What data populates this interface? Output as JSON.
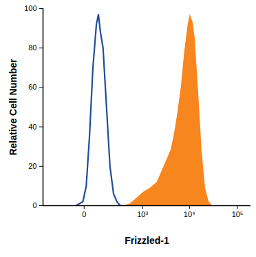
{
  "chart_data": {
    "type": "line",
    "x_label": "Frizzled-1",
    "y_label": "Relative Cell Number",
    "log": "x",
    "xlim": [
      -400,
      190000
    ],
    "xticks": [
      0,
      {
        "value": 1000,
        "label": "10³"
      },
      {
        "value": 10000,
        "label": "10⁴"
      },
      {
        "value": 100000,
        "label": "10⁵"
      }
    ],
    "ylim": [
      0,
      100
    ],
    "yticks": [
      0,
      20,
      40,
      60,
      80,
      100
    ],
    "series": [
      {
        "type": "area",
        "color": "#f7861e",
        "x": [
          366,
          529,
          762,
          1069,
          1493,
          2084,
          2908,
          4060,
          4795,
          5666,
          6694,
          7908,
          9344,
          10300,
          11830,
          13070,
          15400,
          18200,
          21500,
          25400,
          30000,
          41800
        ],
        "values": [
          0,
          1,
          4,
          7,
          9,
          12,
          20,
          28,
          36,
          47,
          60,
          78,
          92,
          97,
          93,
          85,
          58,
          28,
          9,
          2,
          0,
          0
        ]
      },
      {
        "type": "line",
        "color": "#1f4e9c",
        "x": [
          -31,
          -4,
          7,
          19,
          34,
          52,
          64,
          77,
          96,
          125,
          159,
          201,
          248,
          300,
          366
        ],
        "values": [
          0,
          2,
          10,
          35,
          70,
          92,
          97,
          88,
          80,
          50,
          20,
          6,
          2,
          0,
          0
        ]
      }
    ]
  }
}
